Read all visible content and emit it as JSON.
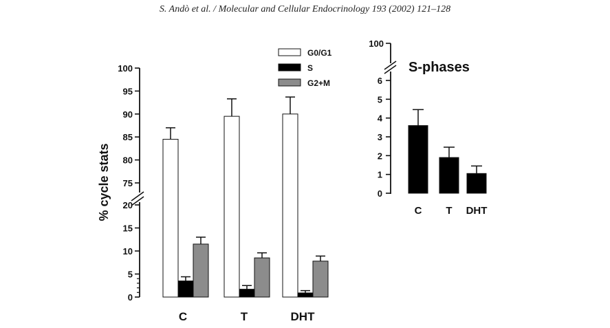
{
  "header": {
    "text": "S. Andò et al. / Molecular and Cellular Endocrinology 193 (2002) 121–128"
  },
  "colors": {
    "g0g1": "#ffffff",
    "s": "#000000",
    "g2m": "#8c8c8c",
    "axis": "#111111"
  },
  "chart_data": [
    {
      "type": "bar",
      "title": "",
      "ylabel": "% cycle stats",
      "xlabel": "",
      "categories": [
        "C",
        "T",
        "DHT"
      ],
      "series": [
        {
          "name": "G0/G1",
          "values": [
            84.5,
            89.5,
            90.0
          ],
          "errors": [
            2.5,
            3.8,
            3.7
          ]
        },
        {
          "name": "S",
          "values": [
            3.5,
            1.7,
            0.9
          ],
          "errors": [
            0.9,
            0.8,
            0.5
          ]
        },
        {
          "name": "G2+M",
          "values": [
            11.5,
            8.5,
            7.8
          ],
          "errors": [
            1.5,
            1.1,
            1.1
          ]
        }
      ],
      "y_ticks_lower": [
        "0",
        "5",
        "10",
        "15",
        "20"
      ],
      "y_ticks_upper": [
        "75",
        "80",
        "85",
        "90",
        "95",
        "100"
      ],
      "ylim_lower": [
        0,
        20
      ],
      "ylim_upper": [
        75,
        100
      ],
      "axis_break": "between 20 and 75",
      "legend": [
        "G0/G1",
        "S",
        "G2+M"
      ],
      "legend_position": "top-right"
    },
    {
      "type": "bar",
      "title": "S-phases",
      "ylabel": "",
      "xlabel": "",
      "categories": [
        "C",
        "T",
        "DHT"
      ],
      "series": [
        {
          "name": "S",
          "values": [
            3.6,
            1.9,
            1.05
          ],
          "errors": [
            0.85,
            0.55,
            0.4
          ]
        }
      ],
      "y_ticks_lower": [
        "0",
        "1",
        "2",
        "3",
        "4",
        "5",
        "6"
      ],
      "y_ticks_upper": [
        "100"
      ],
      "ylim_lower": [
        0,
        6
      ],
      "axis_break": "between 6 and 100"
    }
  ]
}
